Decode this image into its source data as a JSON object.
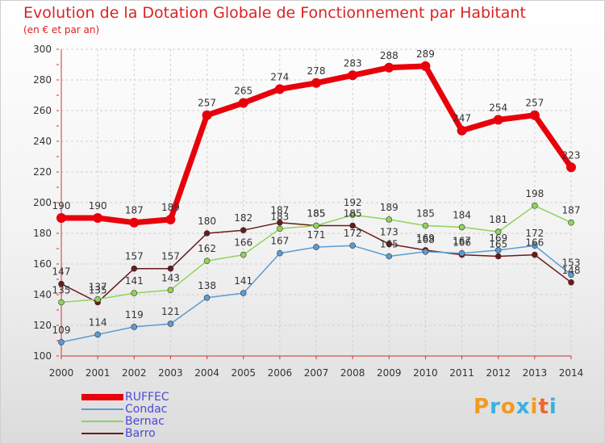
{
  "header": {
    "title": "Evolution de la Dotation Globale de Fonctionnement par Habitant",
    "subtitle": "(en € et par an)"
  },
  "logo": {
    "text": "Proxiti",
    "colors": [
      "#f29a1f",
      "#3bb0e0",
      "#f29a1f",
      "#3bb0e0",
      "#f29a1f",
      "#e63",
      "#3bb0e0"
    ]
  },
  "chart_data": {
    "type": "line",
    "x": [
      "2000",
      "2001",
      "2002",
      "2003",
      "2004",
      "2005",
      "2006",
      "2007",
      "2008",
      "2009",
      "2010",
      "2011",
      "2012",
      "2013",
      "2014"
    ],
    "ylim": [
      100,
      300
    ],
    "yticks": [
      100,
      120,
      140,
      160,
      180,
      200,
      220,
      240,
      260,
      280,
      300
    ],
    "grid": true,
    "legend": "bottom-left",
    "series": [
      {
        "name": "RUFFEC",
        "color": "#e8000b",
        "values": [
          190,
          190,
          187,
          189,
          257,
          265,
          274,
          278,
          283,
          288,
          289,
          247,
          254,
          257,
          223
        ]
      },
      {
        "name": "Condac",
        "color": "#5b9bd5",
        "values": [
          109,
          114,
          119,
          121,
          138,
          141,
          167,
          171,
          172,
          165,
          168,
          167,
          169,
          172,
          153
        ]
      },
      {
        "name": "Bernac",
        "color": "#8fd35a",
        "values": [
          135,
          137,
          141,
          143,
          162,
          166,
          183,
          185,
          192,
          189,
          185,
          184,
          181,
          198,
          187
        ]
      },
      {
        "name": "Barro",
        "color": "#6b1a1a",
        "values": [
          147,
          135,
          157,
          157,
          180,
          182,
          187,
          185,
          185,
          173,
          169,
          166,
          165,
          166,
          148
        ]
      }
    ]
  }
}
